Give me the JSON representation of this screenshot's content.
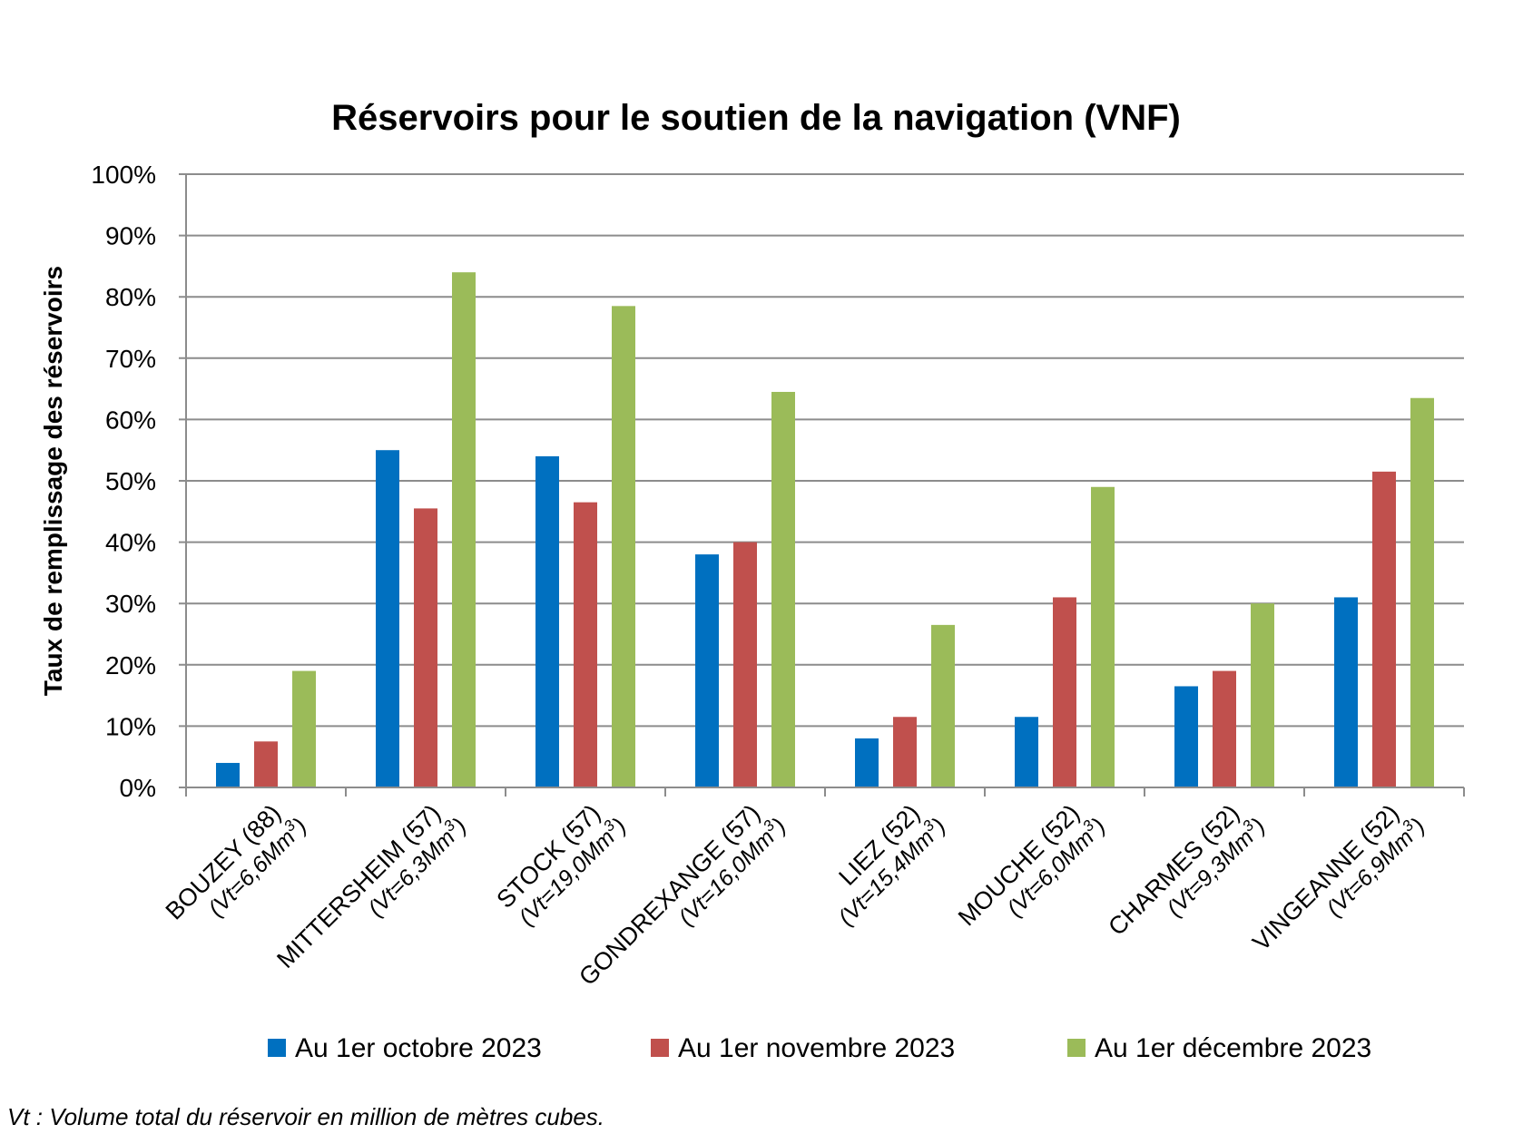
{
  "chart_data": {
    "type": "bar",
    "title": "Réservoirs pour le soutien de la navigation (VNF)",
    "ylabel": "Taux de remplissage des réservoirs",
    "xlabel": "",
    "ylim": [
      0,
      100
    ],
    "yticks": [
      "0%",
      "10%",
      "20%",
      "30%",
      "40%",
      "50%",
      "60%",
      "70%",
      "80%",
      "90%",
      "100%"
    ],
    "grid": true,
    "legend_position": "bottom",
    "categories": [
      {
        "name": "BOUZEY (88)",
        "volume": "(Vt=6,6Mm",
        "sup": "3",
        "close": ")"
      },
      {
        "name": "MITTERSHEIM (57)",
        "volume": "(Vt=6,3Mm",
        "sup": "3",
        "close": ")"
      },
      {
        "name": "STOCK (57)",
        "volume": "(Vt=19,0Mm",
        "sup": "3",
        "close": ")"
      },
      {
        "name": "GONDREXANGE (57)",
        "volume": "(Vt=16,0Mm",
        "sup": "3",
        "close": ")"
      },
      {
        "name": "LIEZ (52)",
        "volume": "(Vt=15,4Mm",
        "sup": "3",
        "close": ")"
      },
      {
        "name": "MOUCHE (52)",
        "volume": "(Vt=6,0Mm",
        "sup": "3",
        "close": ")"
      },
      {
        "name": "CHARMES (52)",
        "volume": "(Vt=9,3Mm",
        "sup": "3",
        "close": ")"
      },
      {
        "name": "VINGEANNE (52)",
        "volume": "(Vt=6,9Mm",
        "sup": "3",
        "close": ")"
      }
    ],
    "series": [
      {
        "name": "Au 1er octobre 2023",
        "color": "#0070c0",
        "values": [
          4,
          55,
          54,
          38,
          8,
          11.5,
          16.5,
          31
        ]
      },
      {
        "name": "Au 1er novembre 2023",
        "color": "#c0504d",
        "values": [
          7.5,
          45.5,
          46.5,
          40,
          11.5,
          31,
          19,
          51.5
        ]
      },
      {
        "name": "Au 1er décembre 2023",
        "color": "#9bbb59",
        "values": [
          19,
          84,
          78.5,
          64.5,
          26.5,
          49,
          30,
          63.5
        ]
      }
    ],
    "footnote": "Vt : Volume total du réservoir en million de mètres cubes."
  }
}
